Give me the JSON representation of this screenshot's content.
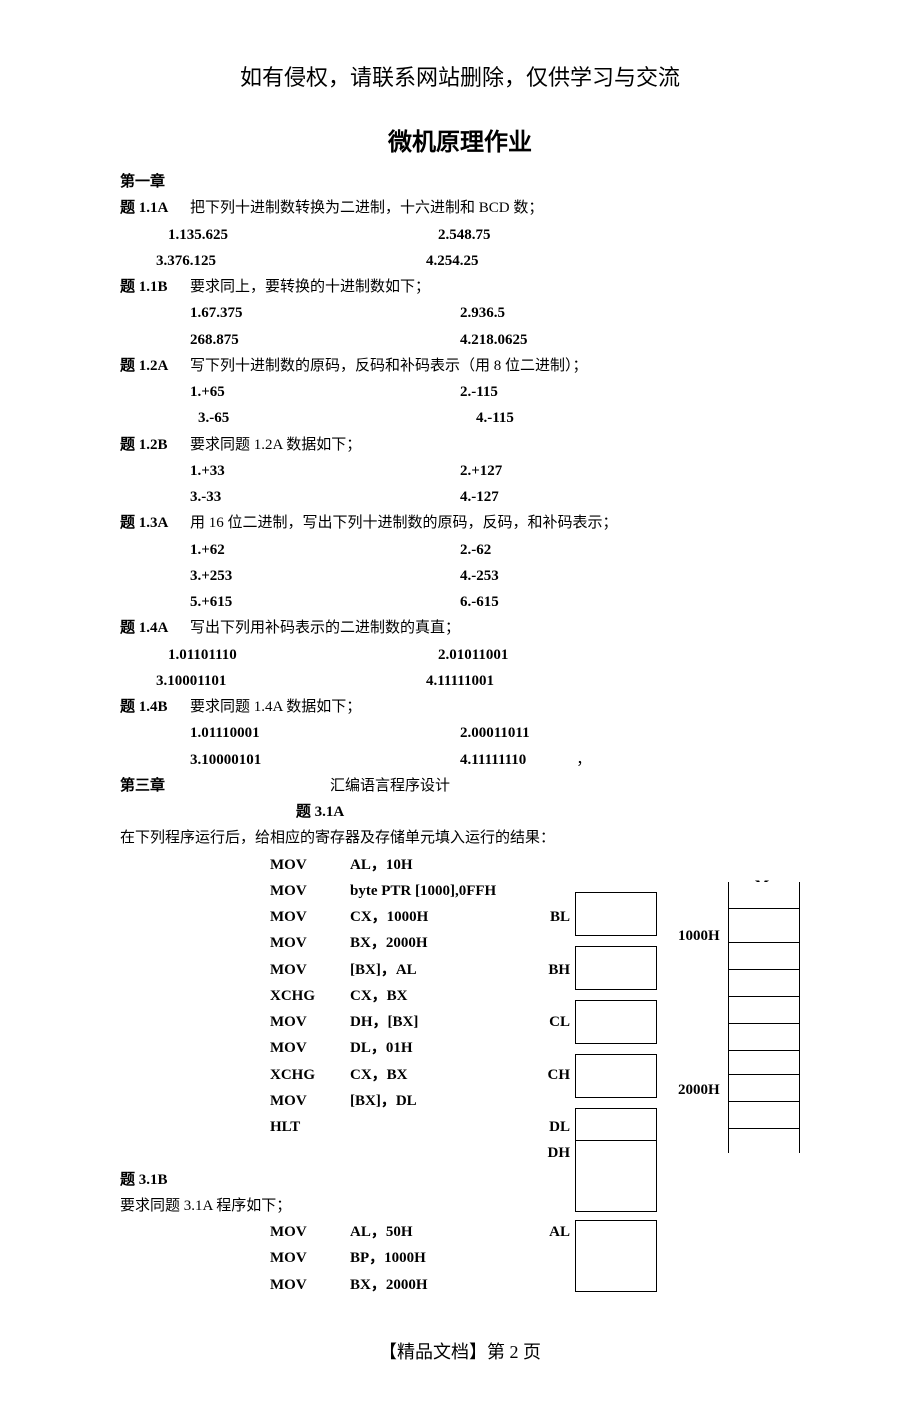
{
  "notice": "如有侵权，请联系网站删除，仅供学习与交流",
  "title": "微机原理作业",
  "chapter1": "第一章",
  "q11a": {
    "label": "题 1.1A",
    "text": "把下列十进制数转换为二进制，十六进制和 BCD 数；",
    "i1": "1.135.625",
    "i2": "2.548.75",
    "i3": "3.376.125",
    "i4": "4.254.25"
  },
  "q11b": {
    "label": "题 1.1B",
    "text": "要求同上，要转换的十进制数如下；",
    "i1": "1.67.375",
    "i2": "2.936.5",
    "i3": "268.875",
    "i4": "4.218.0625"
  },
  "q12a": {
    "label": "题 1.2A",
    "text": "写下列十进制数的原码，反码和补码表示（用 8 位二进制）；",
    "i1": "1.+65",
    "i2": "2.-115",
    "i3": "3.-65",
    "i4": "4.-115"
  },
  "q12b": {
    "label": "题 1.2B",
    "text": "要求同题 1.2A 数据如下；",
    "i1": "1.+33",
    "i2": "2.+127",
    "i3": "3.-33",
    "i4": "4.-127"
  },
  "q13a": {
    "label": "题 1.3A",
    "text": "用 16 位二进制，写出下列十进制数的原码，反码，和补码表示；",
    "i1": "1.+62",
    "i2": "2.-62",
    "i3": "3.+253",
    "i4": "4.-253",
    "i5": "5.+615",
    "i6": "6.-615"
  },
  "q14a": {
    "label": "题 1.4A",
    "text": "写出下列用补码表示的二进制数的真直；",
    "i1": "1.01101110",
    "i2": "2.01011001",
    "i3": "3.10001101",
    "i4": "4.11111001"
  },
  "q14b": {
    "label": "题 1.4B",
    "text": "要求同题 1.4A 数据如下；",
    "i1": "1.01110001",
    "i2": "2.00011011",
    "i3": "3.10000101",
    "i4": "4.11111110",
    "comma": "，"
  },
  "chapter3": "第三章",
  "chapter3title": "汇编语言程序设计",
  "q31a_label": "题 3.1A",
  "q31a_text": "在下列程序运行后，给相应的寄存器及存储单元填入运行的结果：",
  "q31b_label": "题  3.1B",
  "q31b_text": "要求同题  3.1A 程序如下；",
  "code_a": [
    {
      "mn": "MOV",
      "op": "AL，10H",
      "reg": ""
    },
    {
      "mn": "MOV",
      "op": "byte PTR [1000],0FFH",
      "reg": ""
    },
    {
      "mn": "MOV",
      "op": "CX，1000H",
      "reg": "BL"
    },
    {
      "mn": "MOV",
      "op": "BX，2000H",
      "reg": ""
    },
    {
      "mn": "MOV",
      "op": "[BX]，AL",
      "reg": "BH"
    },
    {
      "mn": "XCHG",
      "op": "CX，BX",
      "reg": ""
    },
    {
      "mn": "MOV",
      "op": "DH，[BX]",
      "reg": "CL"
    },
    {
      "mn": "MOV",
      "op": "DL，01H",
      "reg": ""
    },
    {
      "mn": "XCHG",
      "op": "CX，BX",
      "reg": "CH"
    },
    {
      "mn": "MOV",
      "op": "[BX]，DL",
      "reg": ""
    },
    {
      "mn": "HLT",
      "op": "",
      "reg": "DL"
    },
    {
      "mn": "",
      "op": "",
      "reg": "DH"
    }
  ],
  "code_b": [
    {
      "mn": "MOV",
      "op": "AL，50H",
      "reg": "AL"
    },
    {
      "mn": "MOV",
      "op": "BP，1000H",
      "reg": ""
    },
    {
      "mn": "MOV",
      "op": "BX，2000H",
      "reg": ""
    }
  ],
  "mem": {
    "m_label": "M",
    "addr1": "1000H",
    "addr2": "2000H"
  },
  "footer": "【精品文档】第 2 页"
}
